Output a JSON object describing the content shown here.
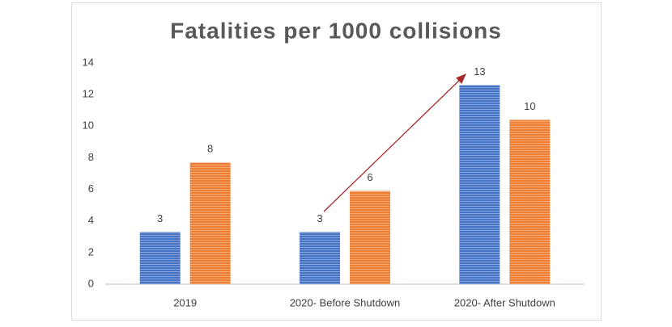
{
  "chart_data": {
    "type": "bar",
    "title": "Fatalities per 1000 collisions",
    "categories": [
      "2019",
      "2020- Before Shutdown",
      "2020- After Shutdown"
    ],
    "series": [
      {
        "color": "#4472c4",
        "values": [
          3.3,
          3.3,
          12.6
        ],
        "value_labels": [
          "3",
          "3",
          "13"
        ]
      },
      {
        "color": "#ed7d31",
        "values": [
          7.7,
          5.9,
          10.4
        ],
        "value_labels": [
          "8",
          "6",
          "10"
        ]
      }
    ],
    "ylim": [
      0,
      14
    ],
    "yticks": [
      0,
      2,
      4,
      6,
      8,
      10,
      12,
      14
    ],
    "grid": false
  }
}
